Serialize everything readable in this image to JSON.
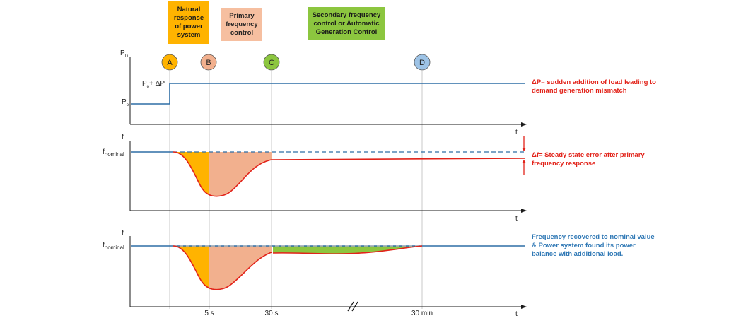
{
  "phases": {
    "natural": "Natural\nresponse\nof power\nsystem",
    "primary": "Primary\nfrequency\ncontrol",
    "secondary": "Secondary frequency\ncontrol or Automatic\nGeneration Control"
  },
  "markers": [
    "A",
    "B",
    "C",
    "D"
  ],
  "marker_colors": [
    "#FFB300",
    "#F2B08E",
    "#8CC63F",
    "#9DC3E6"
  ],
  "panel1": {
    "y_label_main": "P",
    "y_label_sub": "D",
    "level_high_main": "P",
    "level_high_sub": "o",
    "level_high_rest": "+ ΔP",
    "level_low_main": "P",
    "level_low_sub": "o",
    "t_label": "t",
    "note": "ΔP= sudden addition of load leading to\ndemand generation mismatch"
  },
  "panel2": {
    "y_label": "f",
    "f_main": "f",
    "f_sub": "nominal",
    "t_label": "t",
    "note": "Δf= Steady state error after primary\nfrequency response"
  },
  "panel3": {
    "y_label": "f",
    "f_main": "f",
    "f_sub": "nominal",
    "t_label": "t",
    "note": "Frequency recovered to nominal value\n& Power system found its power\nbalance with additional load."
  },
  "time_ticks": [
    "5 s",
    "30 s",
    "30 min"
  ],
  "colors": {
    "natural": "#FFB300",
    "primary": "#F2B08E",
    "secondary": "#8CC63F",
    "line_blue": "#2F6EA5",
    "freq_red": "#E2231A",
    "note_blue": "#2F78B5"
  }
}
